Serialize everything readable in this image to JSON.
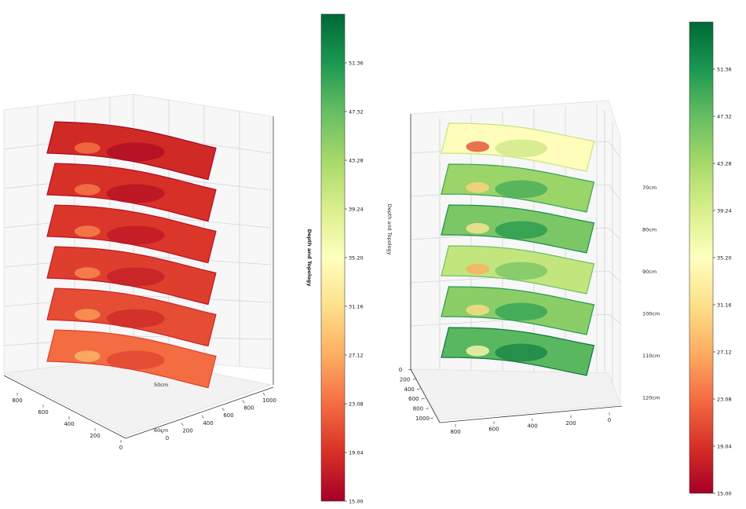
{
  "chart_data": [
    {
      "type": "surface3d",
      "colorbar": {
        "label": "Depth and Topology",
        "ticks": [
          "15.00",
          "19.04",
          "23.08",
          "27.12",
          "31.16",
          "35.20",
          "39.24",
          "43.28",
          "47.32",
          "51.36"
        ],
        "range": [
          15.0,
          55.4
        ],
        "colormap": "RdYlGn"
      },
      "axis_a_ticks": [
        "800",
        "600",
        "400",
        "200",
        "0"
      ],
      "axis_b_ticks": [
        "0",
        "200",
        "400",
        "600",
        "800",
        "1000"
      ],
      "layers": [
        {
          "label": "",
          "mean_value": 18.5
        },
        {
          "label": "",
          "mean_value": 19.0
        },
        {
          "label": "",
          "mean_value": 19.5
        },
        {
          "label": "",
          "mean_value": 20.0
        },
        {
          "label": "",
          "mean_value": 21.0
        },
        {
          "label": "50cm",
          "mean_value": 23.0
        }
      ],
      "corner_label": "60cm"
    },
    {
      "type": "surface3d",
      "colorbar": {
        "label": "Depth and Topology",
        "ticks": [
          "15.00",
          "19.04",
          "23.08",
          "27.12",
          "31.16",
          "35.20",
          "39.24",
          "43.28",
          "47.32",
          "51.36"
        ],
        "range": [
          15.0,
          55.4
        ],
        "colormap": "RdYlGn"
      },
      "axis_a_ticks": [
        "800",
        "600",
        "400",
        "200",
        "0"
      ],
      "axis_b_ticks": [
        "0",
        "200",
        "400",
        "600",
        "800",
        "1000"
      ],
      "layers": [
        {
          "label": "70cm",
          "mean_value": 35.0
        },
        {
          "label": "80cm",
          "mean_value": 44.0
        },
        {
          "label": "90cm",
          "mean_value": 46.0
        },
        {
          "label": "100cm",
          "mean_value": 41.0
        },
        {
          "label": "110cm",
          "mean_value": 45.0
        },
        {
          "label": "120cm",
          "mean_value": 48.0
        }
      ]
    }
  ]
}
